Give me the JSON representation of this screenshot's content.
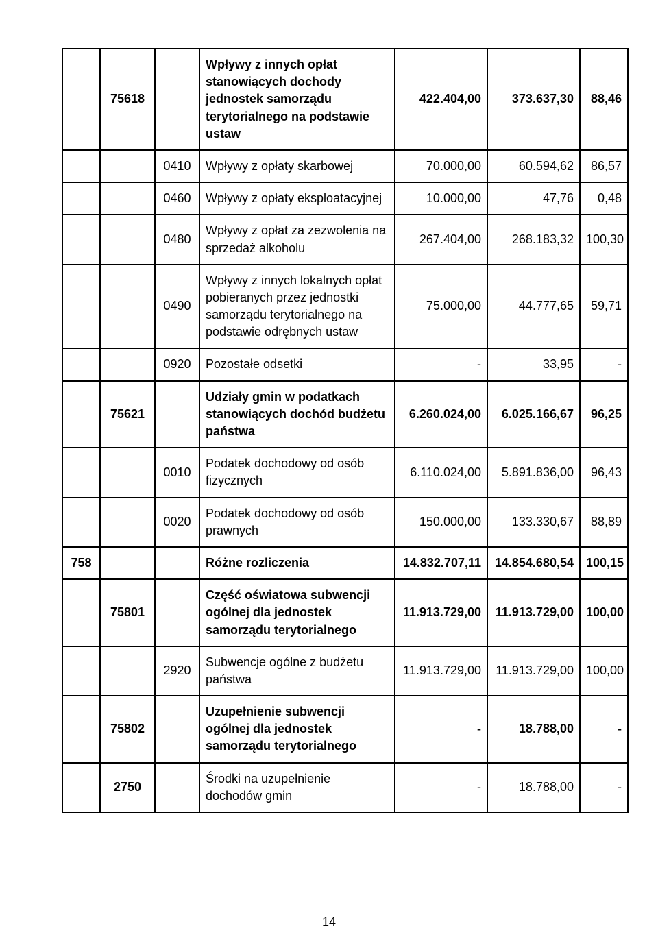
{
  "table": {
    "rows": [
      {
        "col1": "",
        "col2": "75618",
        "col3": "",
        "col4": "Wpływy z innych opłat stanowiących dochody jednostek samorządu terytorialnego na podstawie ustaw",
        "col5": "422.404,00",
        "col6": "373.637,30",
        "col7": "88,46",
        "bold": true
      },
      {
        "col1": "",
        "col2": "",
        "col3": "0410",
        "col4": "Wpływy z opłaty skarbowej",
        "col5": "70.000,00",
        "col6": "60.594,62",
        "col7": "86,57"
      },
      {
        "col1": "",
        "col2": "",
        "col3": "0460",
        "col4": "Wpływy z opłaty eksploatacyjnej",
        "col5": "10.000,00",
        "col6": "47,76",
        "col7": "0,48"
      },
      {
        "col1": "",
        "col2": "",
        "col3": "0480",
        "col4": "Wpływy z opłat za zezwolenia na sprzedaż alkoholu",
        "col5": "267.404,00",
        "col6": "268.183,32",
        "col7": "100,30"
      },
      {
        "col1": "",
        "col2": "",
        "col3": "0490",
        "col4": "Wpływy z innych lokalnych opłat pobieranych przez jednostki samorządu terytorialnego na podstawie odrębnych ustaw",
        "col5": "75.000,00",
        "col6": "44.777,65",
        "col7": "59,71"
      },
      {
        "col1": "",
        "col2": "",
        "col3": "0920",
        "col4": "Pozostałe odsetki",
        "col5": "-",
        "col6": "33,95",
        "col7": "-"
      },
      {
        "col1": "",
        "col2": "75621",
        "col3": "",
        "col4": "Udziały gmin w podatkach stanowiących dochód budżetu państwa",
        "col5": "6.260.024,00",
        "col6": "6.025.166,67",
        "col7": "96,25",
        "bold": true
      },
      {
        "col1": "",
        "col2": "",
        "col3": "0010",
        "col4": "Podatek dochodowy od osób fizycznych",
        "col5": "6.110.024,00",
        "col6": "5.891.836,00",
        "col7": "96,43"
      },
      {
        "col1": "",
        "col2": "",
        "col3": "0020",
        "col4": "Podatek dochodowy od osób prawnych",
        "col5": "150.000,00",
        "col6": "133.330,67",
        "col7": "88,89"
      },
      {
        "col1": "758",
        "col2": "",
        "col3": "",
        "col4": "Różne rozliczenia",
        "col5": "14.832.707,11",
        "col6": "14.854.680,54",
        "col7": "100,15",
        "bold": true
      },
      {
        "col1": "",
        "col2": "75801",
        "col3": "",
        "col4": "Część oświatowa subwencji ogólnej dla jednostek samorządu terytorialnego",
        "col5": "11.913.729,00",
        "col6": "11.913.729,00",
        "col7": "100,00",
        "bold": true
      },
      {
        "col1": "",
        "col2": "",
        "col3": "2920",
        "col4": "Subwencje ogólne z budżetu państwa",
        "col5": "11.913.729,00",
        "col6": "11.913.729,00",
        "col7": "100,00"
      },
      {
        "col1": "",
        "col2": "75802",
        "col3": "",
        "col4": "Uzupełnienie subwencji ogólnej dla jednostek samorządu terytorialnego",
        "col5": "-",
        "col6": "18.788,00",
        "col7": "-",
        "bold": true
      },
      {
        "col1": "",
        "col2": "2750",
        "col3": "",
        "col4": "Środki na uzupełnienie dochodów gmin",
        "col5": "-",
        "col6": "18.788,00",
        "col7": "-"
      }
    ]
  },
  "page_number": "14",
  "colors": {
    "border": "#000000",
    "text": "#000000",
    "background": "#ffffff"
  },
  "font_size_pt": 18
}
